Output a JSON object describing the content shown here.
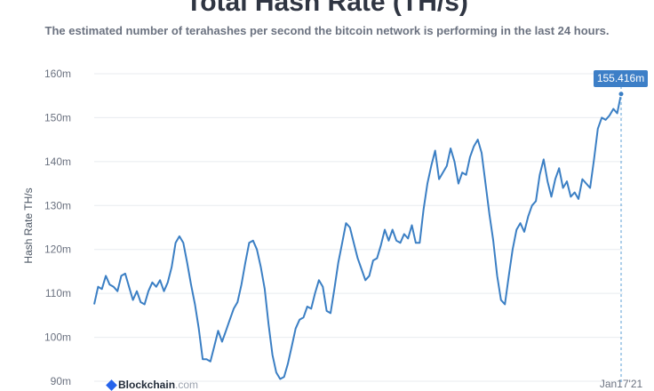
{
  "chart_data": {
    "type": "line",
    "title": "Total Hash Rate (TH/s)",
    "subtitle": "The estimated number of terahashes per second the bitcoin network is performing in the last 24 hours.",
    "ylabel": "Hash Rate TH/s",
    "ylim": [
      90,
      160
    ],
    "yticks": [
      "90m",
      "100m",
      "110m",
      "120m",
      "130m",
      "140m",
      "150m",
      "160m"
    ],
    "xticks": [
      "Jan17'21"
    ],
    "grid": true,
    "latest_value_label": "155.416m",
    "series": [
      {
        "color": "#3b7fc4",
        "values": [
          107.5,
          111.5,
          111,
          114,
          112,
          111.5,
          110.5,
          114,
          114.5,
          111.5,
          108.5,
          110.5,
          108,
          107.5,
          110.5,
          112.5,
          111.5,
          113,
          110.5,
          112.5,
          116,
          121.5,
          123,
          121.5,
          117,
          112,
          107.5,
          102,
          95,
          95,
          94.5,
          98,
          101.5,
          99,
          101.5,
          104,
          106.5,
          108,
          112,
          117,
          121.5,
          122,
          120,
          116,
          111,
          103,
          96,
          92,
          90.5,
          91,
          94,
          98,
          102,
          104,
          104.5,
          107,
          106.5,
          110,
          113,
          111.5,
          106,
          105.5,
          111,
          117,
          121.5,
          126,
          125,
          121.5,
          118,
          115.5,
          113,
          114,
          117.5,
          118,
          121,
          124.5,
          122,
          124.5,
          122,
          121.5,
          123.5,
          122.5,
          125.5,
          121.5,
          121.5,
          129,
          135,
          139,
          142.5,
          136,
          137.5,
          139,
          143,
          140,
          135,
          137.5,
          137,
          141,
          143.5,
          145,
          142,
          135,
          128,
          122,
          114,
          108.5,
          107.5,
          114,
          120,
          124.5,
          126,
          124,
          127.5,
          130,
          131,
          137,
          140.5,
          135.5,
          132,
          136,
          138.5,
          134,
          135.5,
          132,
          133,
          131.5,
          136,
          135,
          134,
          140.5,
          147.5,
          150,
          149.5,
          150.5,
          152,
          151,
          155.4
        ]
      }
    ]
  },
  "branding": {
    "name": "Blockchain",
    "domain": ".com"
  }
}
